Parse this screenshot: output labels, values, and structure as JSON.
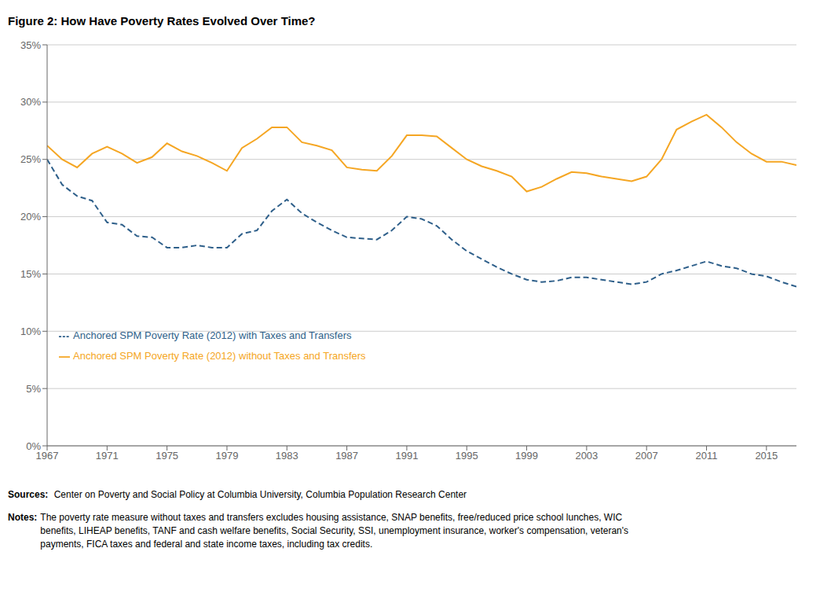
{
  "chart_data": {
    "type": "line",
    "title": "Figure 2: How Have Poverty Rates Evolved Over Time?",
    "x": [
      1967,
      1968,
      1969,
      1970,
      1971,
      1972,
      1973,
      1974,
      1975,
      1976,
      1977,
      1978,
      1979,
      1980,
      1981,
      1982,
      1983,
      1984,
      1985,
      1986,
      1987,
      1988,
      1989,
      1990,
      1991,
      1992,
      1993,
      1994,
      1995,
      1996,
      1997,
      1998,
      1999,
      2000,
      2001,
      2002,
      2003,
      2004,
      2005,
      2006,
      2007,
      2008,
      2009,
      2010,
      2011,
      2012,
      2013,
      2014,
      2015,
      2016,
      2017
    ],
    "series": [
      {
        "name": "Anchored SPM Poverty Rate (2012) without Taxes and Transfers",
        "color": "#F5A623",
        "line_style": "solid",
        "values": [
          26.2,
          25.0,
          24.3,
          25.5,
          26.1,
          25.5,
          24.7,
          25.2,
          26.4,
          25.7,
          25.3,
          24.7,
          24.0,
          26.0,
          26.8,
          27.8,
          27.8,
          26.5,
          26.2,
          25.8,
          24.3,
          24.1,
          24.0,
          25.3,
          27.1,
          27.1,
          27.0,
          26.0,
          25.0,
          24.4,
          24.0,
          23.5,
          22.2,
          22.6,
          23.3,
          23.9,
          23.8,
          23.5,
          23.3,
          23.1,
          23.5,
          25.0,
          27.6,
          28.3,
          28.9,
          27.8,
          26.5,
          25.5,
          24.8,
          24.8,
          24.5
        ]
      },
      {
        "name": "Anchored SPM Poverty Rate (2012) with Taxes and Transfers",
        "color": "#2E5F8A",
        "line_style": "dashed",
        "values": [
          25.0,
          22.8,
          21.8,
          21.4,
          19.5,
          19.3,
          18.3,
          18.2,
          17.3,
          17.3,
          17.5,
          17.3,
          17.3,
          18.5,
          18.8,
          20.5,
          21.5,
          20.3,
          19.5,
          18.8,
          18.2,
          18.1,
          18.0,
          18.8,
          20.0,
          19.8,
          19.2,
          18.0,
          17.0,
          16.3,
          15.6,
          15.0,
          14.5,
          14.3,
          14.4,
          14.7,
          14.7,
          14.5,
          14.3,
          14.1,
          14.3,
          15.0,
          15.3,
          15.7,
          16.1,
          15.7,
          15.5,
          15.0,
          14.8,
          14.3,
          13.9
        ]
      }
    ],
    "xlim": [
      1967,
      2017
    ],
    "xticks": [
      1967,
      1971,
      1975,
      1979,
      1983,
      1987,
      1991,
      1995,
      1999,
      2003,
      2007,
      2011,
      2015
    ],
    "ylim": [
      0,
      35
    ],
    "yticks": [
      {
        "value": 0,
        "label": "0%"
      },
      {
        "value": 5,
        "label": "5%"
      },
      {
        "value": 10,
        "label": "10%"
      },
      {
        "value": 15,
        "label": "15%"
      },
      {
        "value": 20,
        "label": "20%"
      },
      {
        "value": 25,
        "label": "25%"
      },
      {
        "value": 30,
        "label": "30%"
      },
      {
        "value": 35,
        "label": "35%"
      }
    ],
    "grid": "y",
    "legend": "lower left",
    "annotations": [
      [
        "Sources:",
        " Center on Poverty and Social Policy at Columbia University, Columbia Population Research Center"
      ],
      [
        "Notes:",
        "The poverty rate measure without taxes and transfers excludes housing assistance, SNAP benefits, free/reduced price school lunches, WIC\nbenefits, LIHEAP benefits, TANF and cash welfare benefits, Social Security, SSI, unemployment insurance, worker's compensation, veteran's\npayments, FICA taxes and federal and state income taxes, including tax credits."
      ]
    ]
  }
}
